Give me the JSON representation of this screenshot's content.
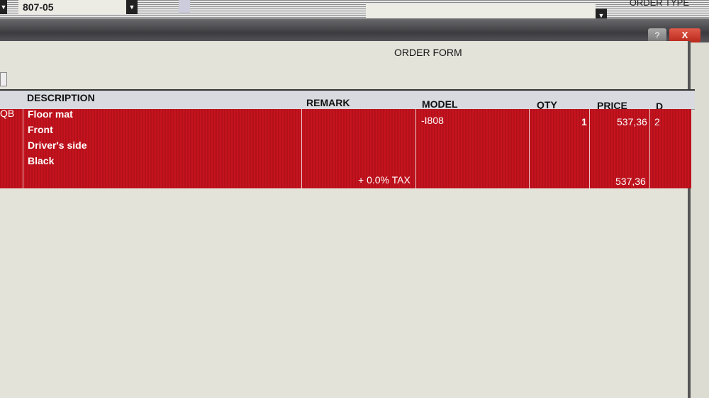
{
  "top": {
    "code_value": "807-05",
    "order_type_label": "ORDER TYPE",
    "order_type_value": ""
  },
  "window": {
    "title": "ORDER FORM",
    "help_label": "?",
    "close_label": "X"
  },
  "table": {
    "columns": [
      "DESCRIPTION",
      "REMARK",
      "MODEL",
      "QTY",
      "PRICE",
      "D"
    ],
    "rows": [
      {
        "code": "QB",
        "description": [
          "Floor mat",
          "Front",
          "Driver's side",
          "Black"
        ],
        "remark": "",
        "tax": "+ 0.0% TAX",
        "model": "-I808",
        "qty": "1",
        "price": "537,36",
        "total": "537,36",
        "d": "2"
      }
    ]
  },
  "colors": {
    "row_selected": "#c4141f",
    "close_button": "#c7301f"
  }
}
